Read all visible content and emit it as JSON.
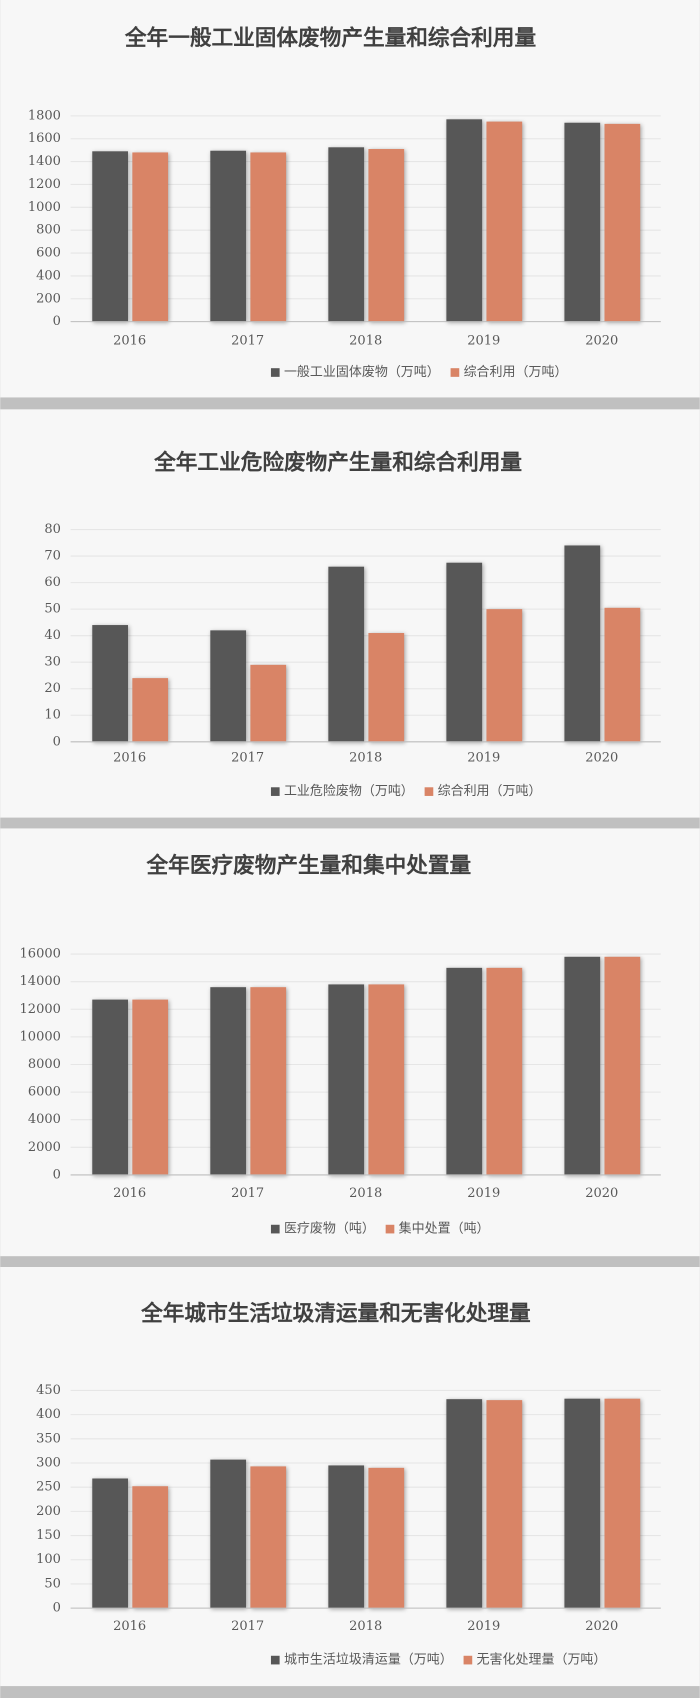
{
  "chart_data": [
    {
      "type": "bar",
      "title": "全年一般工业固体废物产生量和综合利用量",
      "categories": [
        "2016",
        "2017",
        "2018",
        "2019",
        "2020"
      ],
      "series": [
        {
          "name": "一般工业固体废物（万吨）",
          "color": "#575757",
          "values": [
            1490,
            1495,
            1525,
            1770,
            1740
          ]
        },
        {
          "name": "综合利用（万吨）",
          "color": "#d98466",
          "values": [
            1480,
            1480,
            1510,
            1750,
            1730
          ]
        }
      ],
      "ylim": [
        0,
        1800
      ],
      "yticks": [
        0,
        200,
        400,
        600,
        800,
        1000,
        1200,
        1400,
        1600,
        1800
      ],
      "grid": true
    },
    {
      "type": "bar",
      "title": "全年工业危险废物产生量和综合利用量",
      "categories": [
        "2016",
        "2017",
        "2018",
        "2019",
        "2020"
      ],
      "series": [
        {
          "name": "工业危险废物（万吨）",
          "color": "#575757",
          "values": [
            44,
            42,
            66,
            67.5,
            74
          ]
        },
        {
          "name": "综合利用（万吨）",
          "color": "#d98466",
          "values": [
            24,
            29,
            41,
            50,
            50.5
          ]
        }
      ],
      "ylim": [
        0,
        80
      ],
      "yticks": [
        0,
        10,
        20,
        30,
        40,
        50,
        60,
        70,
        80
      ],
      "grid": true
    },
    {
      "type": "bar",
      "title": "全年医疗废物产生量和集中处置量",
      "categories": [
        "2016",
        "2017",
        "2018",
        "2019",
        "2020"
      ],
      "series": [
        {
          "name": "医疗废物（吨）",
          "color": "#575757",
          "values": [
            12700,
            13600,
            13800,
            15000,
            15800
          ]
        },
        {
          "name": "集中处置（吨）",
          "color": "#d98466",
          "values": [
            12700,
            13600,
            13800,
            15000,
            15800
          ]
        }
      ],
      "ylim": [
        0,
        16000
      ],
      "yticks": [
        0,
        2000,
        4000,
        6000,
        8000,
        10000,
        12000,
        14000,
        16000
      ],
      "grid": true
    },
    {
      "type": "bar",
      "title": "全年城市生活垃圾清运量和无害化处理量",
      "categories": [
        "2016",
        "2017",
        "2018",
        "2019",
        "2020"
      ],
      "series": [
        {
          "name": "城市生活垃圾清运量（万吨）",
          "color": "#575757",
          "values": [
            268,
            307,
            295,
            432,
            433
          ]
        },
        {
          "name": "无害化处理量（万吨）",
          "color": "#d98466",
          "values": [
            252,
            293,
            290,
            430,
            433
          ]
        }
      ],
      "ylim": [
        0,
        450
      ],
      "yticks": [
        0,
        50,
        100,
        150,
        200,
        250,
        300,
        350,
        400,
        450
      ],
      "grid": true
    }
  ]
}
